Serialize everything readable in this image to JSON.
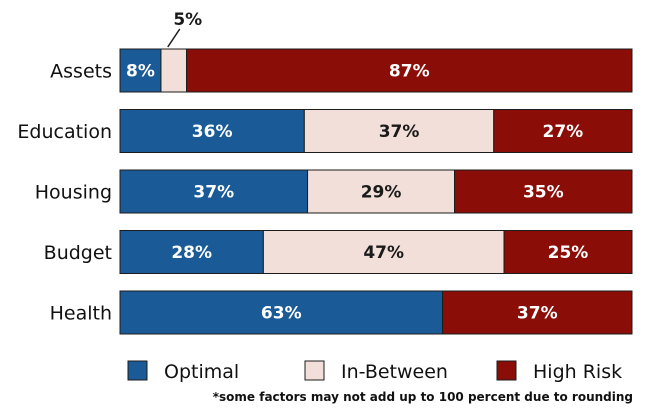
{
  "chart_data": {
    "type": "bar",
    "orientation": "horizontal",
    "stacked": true,
    "categories": [
      "Assets",
      "Education",
      "Housing",
      "Budget",
      "Health"
    ],
    "series": [
      {
        "name": "Optimal",
        "color": "#1a5a96",
        "values": [
          8,
          36,
          37,
          28,
          63
        ],
        "labels": [
          "8%",
          "36%",
          "37%",
          "28%",
          "63%"
        ]
      },
      {
        "name": "In-Between",
        "color": "#f2dfd9",
        "values": [
          5,
          37,
          29,
          47,
          0
        ],
        "labels": [
          "5%",
          "37%",
          "29%",
          "47%",
          ""
        ]
      },
      {
        "name": "High Risk",
        "color": "#8b0d07",
        "values": [
          87,
          27,
          35,
          25,
          37
        ],
        "labels": [
          "87%",
          "27%",
          "35%",
          "25%",
          "37%"
        ]
      }
    ],
    "xlim": [
      0,
      100
    ],
    "grid": false,
    "legend_position": "bottom",
    "footnote": "*some factors may not add up to 100 percent due to rounding"
  }
}
